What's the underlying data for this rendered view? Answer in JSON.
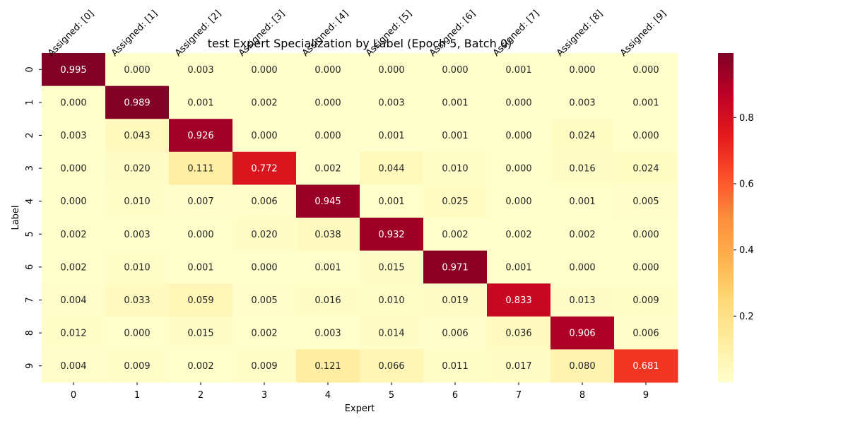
{
  "chart_data": {
    "type": "heatmap",
    "title": "test Expert Specialization by Label (Epoch 5, Batch 0)",
    "xlabel": "Expert",
    "ylabel": "Label",
    "x_categories": [
      "0",
      "1",
      "2",
      "3",
      "4",
      "5",
      "6",
      "7",
      "8",
      "9"
    ],
    "y_categories": [
      "0",
      "1",
      "2",
      "3",
      "4",
      "5",
      "6",
      "7",
      "8",
      "9"
    ],
    "top_labels": [
      "Assigned: [0]",
      "Assigned: [1]",
      "Assigned: [2]",
      "Assigned: [3]",
      "Assigned: [4]",
      "Assigned: [5]",
      "Assigned: [6]",
      "Assigned: [7]",
      "Assigned: [8]",
      "Assigned: [9]"
    ],
    "values": [
      [
        0.995,
        0.0,
        0.003,
        0.0,
        0.0,
        0.0,
        0.0,
        0.001,
        0.0,
        0.0
      ],
      [
        0.0,
        0.989,
        0.001,
        0.002,
        0.0,
        0.003,
        0.001,
        0.0,
        0.003,
        0.001
      ],
      [
        0.003,
        0.043,
        0.926,
        0.0,
        0.0,
        0.001,
        0.001,
        0.0,
        0.024,
        0.0
      ],
      [
        0.0,
        0.02,
        0.111,
        0.772,
        0.002,
        0.044,
        0.01,
        0.0,
        0.016,
        0.024
      ],
      [
        0.0,
        0.01,
        0.007,
        0.006,
        0.945,
        0.001,
        0.025,
        0.0,
        0.001,
        0.005
      ],
      [
        0.002,
        0.003,
        0.0,
        0.02,
        0.038,
        0.932,
        0.002,
        0.002,
        0.002,
        0.0
      ],
      [
        0.002,
        0.01,
        0.001,
        0.0,
        0.001,
        0.015,
        0.971,
        0.001,
        0.0,
        0.0
      ],
      [
        0.004,
        0.033,
        0.059,
        0.005,
        0.016,
        0.01,
        0.019,
        0.833,
        0.013,
        0.009
      ],
      [
        0.012,
        0.0,
        0.015,
        0.002,
        0.003,
        0.014,
        0.006,
        0.036,
        0.906,
        0.006
      ],
      [
        0.004,
        0.009,
        0.002,
        0.009,
        0.121,
        0.066,
        0.011,
        0.017,
        0.08,
        0.681
      ]
    ],
    "value_format": "3 decimals",
    "colormap": "YlOrRd",
    "colormap_stops": [
      "#ffffcc",
      "#ffeda0",
      "#fed976",
      "#feb24c",
      "#fd8d3c",
      "#fc4e2a",
      "#e31a1c",
      "#bd0026",
      "#800026"
    ],
    "color_range": [
      0.0,
      0.995
    ],
    "colorbar_ticks": [
      "0.2",
      "0.4",
      "0.6",
      "0.8"
    ],
    "colorbar_tick_values": [
      0.2,
      0.4,
      0.6,
      0.8
    ],
    "grid": false
  }
}
